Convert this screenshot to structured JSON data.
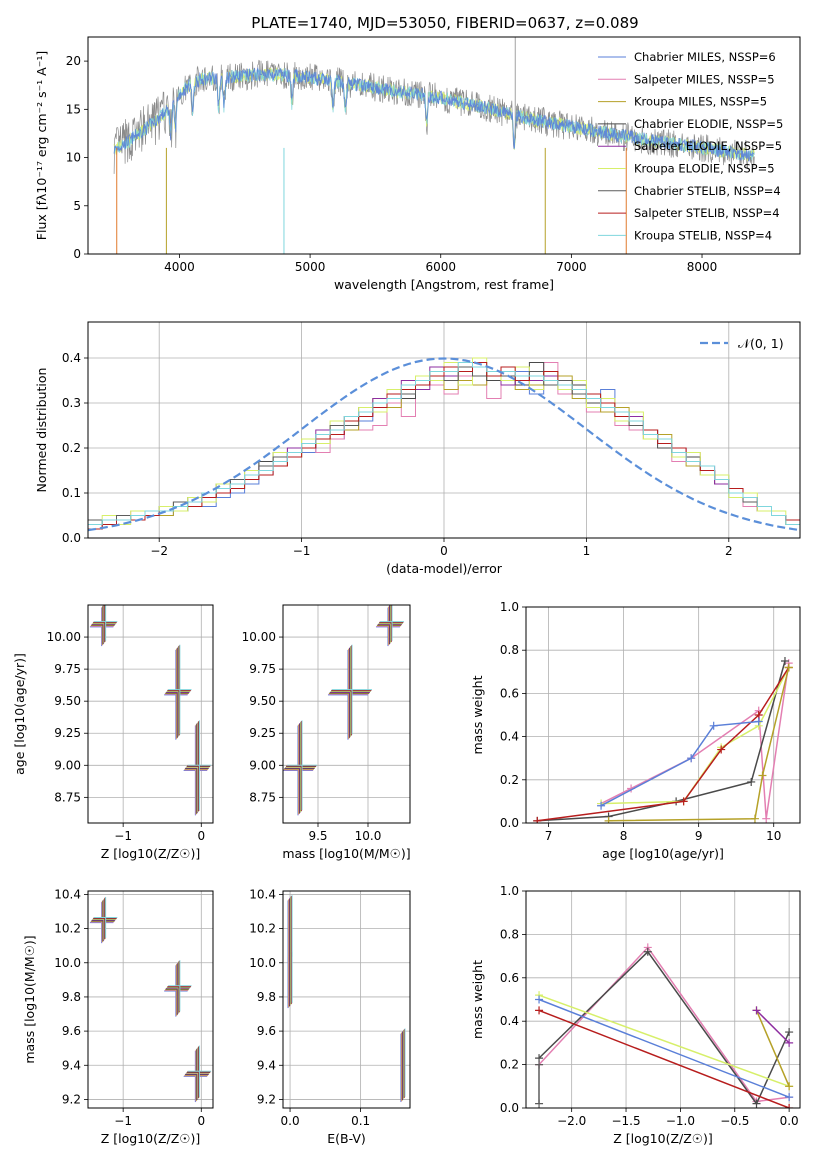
{
  "figure_title": "PLATE=1740, MJD=53050, FIBERID=0637, z=0.089",
  "colors": {
    "Chabrier MILES": "#5a7fd8",
    "Salpeter MILES": "#e37fb2",
    "Kroupa MILES": "#b5a128",
    "Chabrier ELODIE": "#4a4a4a",
    "Salpeter ELODIE": "#8e2ea0",
    "Kroupa ELODIE": "#d7ef6a",
    "Chabrier STELIB": "#5c5c5c",
    "Salpeter STELIB": "#b71d1d",
    "Kroupa STELIB": "#7fd6dd",
    "data_grey": "#8a8a8a",
    "model_orange": "#e07a2c",
    "normal_curve": "#5b8fd9"
  },
  "chart_data": [
    {
      "id": "spectrum",
      "type": "line",
      "title": "PLATE=1740, MJD=53050, FIBERID=0637, z=0.089",
      "xlabel": "wavelength [Angstrom, rest frame]",
      "ylabel": "Flux [fλ10⁻¹⁷ erg cm⁻² s⁻¹ A⁻¹]",
      "xlim": [
        3300,
        8750
      ],
      "ylim": [
        0,
        22.5
      ],
      "xticks": [
        4000,
        5000,
        6000,
        7000,
        8000
      ],
      "yticks": [
        0,
        5,
        10,
        15,
        20
      ],
      "legend_position": "top-right",
      "legend": [
        "Chabrier MILES, NSSP=6",
        "Salpeter MILES, NSSP=5",
        "Kroupa MILES, NSSP=5",
        "Chabrier ELODIE, NSSP=5",
        "Salpeter ELODIE, NSSP=5",
        "Kroupa ELODIE, NSSP=5",
        "Chabrier STELIB, NSSP=4",
        "Salpeter STELIB, NSSP=4",
        "Kroupa STELIB, NSSP=4"
      ],
      "continuum": {
        "x": [
          3500,
          3600,
          3700,
          3800,
          3900,
          4000,
          4100,
          4200,
          4400,
          4600,
          4800,
          5000,
          5200,
          5400,
          5600,
          5800,
          6000,
          6200,
          6400,
          6600,
          6800,
          7000,
          7200,
          7400,
          7600,
          7800,
          8000,
          8200,
          8400
        ],
        "y": [
          10.8,
          11.6,
          12.6,
          13.6,
          14.8,
          16.5,
          17.8,
          18.2,
          18.4,
          18.6,
          18.6,
          18.3,
          17.9,
          17.5,
          17.0,
          16.6,
          16.2,
          15.6,
          15.0,
          14.3,
          13.7,
          13.2,
          12.7,
          12.2,
          11.8,
          11.4,
          11.0,
          10.6,
          10.2
        ]
      }
    },
    {
      "id": "residuals",
      "type": "histogram",
      "xlabel": "(data-model)/error",
      "ylabel": "Normed distribution",
      "xlim": [
        -2.5,
        2.5
      ],
      "ylim": [
        0,
        0.48
      ],
      "xticks": [
        -2,
        -1,
        0,
        1,
        2
      ],
      "yticks": [
        0.0,
        0.1,
        0.2,
        0.3,
        0.4
      ],
      "grid": true,
      "legend_position": "top-right",
      "reference_curve": "𝒩(0, 1)",
      "bins": {
        "start": -2.5,
        "width": 0.1,
        "count": 50
      },
      "series_values": [
        [
          0.03,
          0.03,
          0.04,
          0.04,
          0.05,
          0.05,
          0.06,
          0.07,
          0.07,
          0.09,
          0.1,
          0.12,
          0.14,
          0.16,
          0.18,
          0.19,
          0.21,
          0.22,
          0.24,
          0.26,
          0.28,
          0.3,
          0.32,
          0.34,
          0.36,
          0.37,
          0.38,
          0.39,
          0.36,
          0.34,
          0.37,
          0.32,
          0.35,
          0.35,
          0.32,
          0.3,
          0.33,
          0.28,
          0.27,
          0.23,
          0.22,
          0.19,
          0.17,
          0.14,
          0.14,
          0.09,
          0.08,
          0.07,
          0.05,
          0.04
        ],
        [
          0.04,
          0.03,
          0.05,
          0.06,
          0.05,
          0.06,
          0.07,
          0.08,
          0.09,
          0.1,
          0.13,
          0.14,
          0.15,
          0.18,
          0.2,
          0.21,
          0.19,
          0.22,
          0.26,
          0.24,
          0.25,
          0.3,
          0.27,
          0.35,
          0.34,
          0.32,
          0.36,
          0.38,
          0.31,
          0.34,
          0.36,
          0.33,
          0.39,
          0.32,
          0.33,
          0.28,
          0.31,
          0.25,
          0.24,
          0.22,
          0.21,
          0.17,
          0.19,
          0.14,
          0.12,
          0.1,
          0.07,
          0.06,
          0.05,
          0.03
        ],
        [
          0.03,
          0.04,
          0.05,
          0.04,
          0.06,
          0.05,
          0.08,
          0.07,
          0.1,
          0.11,
          0.12,
          0.15,
          0.17,
          0.16,
          0.19,
          0.22,
          0.21,
          0.25,
          0.24,
          0.28,
          0.31,
          0.29,
          0.33,
          0.34,
          0.37,
          0.33,
          0.35,
          0.34,
          0.36,
          0.35,
          0.33,
          0.34,
          0.37,
          0.36,
          0.31,
          0.32,
          0.28,
          0.29,
          0.25,
          0.22,
          0.23,
          0.19,
          0.16,
          0.15,
          0.13,
          0.1,
          0.09,
          0.06,
          0.05,
          0.04
        ],
        [
          0.02,
          0.04,
          0.04,
          0.05,
          0.06,
          0.07,
          0.06,
          0.09,
          0.09,
          0.12,
          0.13,
          0.13,
          0.17,
          0.19,
          0.18,
          0.21,
          0.23,
          0.24,
          0.27,
          0.29,
          0.3,
          0.33,
          0.31,
          0.36,
          0.35,
          0.37,
          0.34,
          0.38,
          0.35,
          0.36,
          0.34,
          0.39,
          0.35,
          0.33,
          0.34,
          0.3,
          0.29,
          0.27,
          0.26,
          0.24,
          0.2,
          0.18,
          0.18,
          0.15,
          0.12,
          0.11,
          0.08,
          0.07,
          0.05,
          0.03
        ],
        [
          0.03,
          0.03,
          0.04,
          0.05,
          0.05,
          0.06,
          0.07,
          0.08,
          0.1,
          0.1,
          0.12,
          0.14,
          0.16,
          0.17,
          0.2,
          0.2,
          0.24,
          0.23,
          0.26,
          0.27,
          0.31,
          0.31,
          0.35,
          0.33,
          0.38,
          0.36,
          0.37,
          0.38,
          0.37,
          0.34,
          0.36,
          0.35,
          0.36,
          0.34,
          0.33,
          0.31,
          0.3,
          0.27,
          0.27,
          0.23,
          0.21,
          0.2,
          0.17,
          0.16,
          0.12,
          0.11,
          0.09,
          0.06,
          0.05,
          0.04
        ],
        [
          0.03,
          0.05,
          0.03,
          0.06,
          0.05,
          0.07,
          0.06,
          0.09,
          0.08,
          0.12,
          0.11,
          0.15,
          0.15,
          0.19,
          0.18,
          0.22,
          0.21,
          0.26,
          0.25,
          0.29,
          0.28,
          0.33,
          0.32,
          0.36,
          0.35,
          0.39,
          0.34,
          0.4,
          0.36,
          0.35,
          0.38,
          0.33,
          0.37,
          0.33,
          0.35,
          0.29,
          0.31,
          0.26,
          0.28,
          0.22,
          0.22,
          0.18,
          0.19,
          0.14,
          0.14,
          0.09,
          0.1,
          0.06,
          0.06,
          0.03
        ],
        [
          0.04,
          0.03,
          0.05,
          0.05,
          0.06,
          0.06,
          0.08,
          0.08,
          0.09,
          0.11,
          0.13,
          0.13,
          0.16,
          0.18,
          0.19,
          0.2,
          0.22,
          0.25,
          0.25,
          0.28,
          0.3,
          0.32,
          0.32,
          0.35,
          0.37,
          0.35,
          0.38,
          0.36,
          0.37,
          0.36,
          0.35,
          0.37,
          0.34,
          0.35,
          0.32,
          0.31,
          0.29,
          0.28,
          0.25,
          0.24,
          0.21,
          0.19,
          0.17,
          0.15,
          0.13,
          0.11,
          0.08,
          0.07,
          0.05,
          0.04
        ],
        [
          0.02,
          0.03,
          0.04,
          0.04,
          0.05,
          0.06,
          0.07,
          0.07,
          0.09,
          0.1,
          0.11,
          0.13,
          0.14,
          0.16,
          0.18,
          0.2,
          0.22,
          0.23,
          0.26,
          0.27,
          0.29,
          0.32,
          0.33,
          0.34,
          0.36,
          0.38,
          0.37,
          0.39,
          0.36,
          0.38,
          0.35,
          0.36,
          0.37,
          0.34,
          0.33,
          0.32,
          0.3,
          0.27,
          0.26,
          0.24,
          0.21,
          0.2,
          0.17,
          0.15,
          0.13,
          0.11,
          0.09,
          0.07,
          0.05,
          0.04
        ],
        [
          0.03,
          0.04,
          0.04,
          0.05,
          0.06,
          0.06,
          0.07,
          0.08,
          0.1,
          0.11,
          0.12,
          0.14,
          0.15,
          0.17,
          0.19,
          0.21,
          0.23,
          0.24,
          0.27,
          0.28,
          0.3,
          0.31,
          0.34,
          0.35,
          0.37,
          0.37,
          0.39,
          0.38,
          0.37,
          0.37,
          0.36,
          0.36,
          0.35,
          0.34,
          0.33,
          0.31,
          0.29,
          0.28,
          0.26,
          0.23,
          0.22,
          0.19,
          0.17,
          0.16,
          0.13,
          0.1,
          0.09,
          0.07,
          0.05,
          0.03
        ]
      ]
    },
    {
      "id": "age_vs_Z",
      "type": "errorbar",
      "xlabel": "Z [log10(Z/Z☉)]",
      "ylabel": "age  [log10(age/yr)]",
      "xlim": [
        -1.45,
        0.15
      ],
      "ylim": [
        8.55,
        10.25
      ],
      "xticks": [
        -1,
        0
      ],
      "yticks": [
        8.75,
        9.0,
        9.25,
        9.5,
        9.75,
        10.0
      ],
      "grid": true,
      "points": [
        {
          "x": -1.25,
          "y": 10.1,
          "xerr": 0.15,
          "yerr": 0.15
        },
        {
          "x": -0.3,
          "y": 9.57,
          "xerr": 0.15,
          "yerr": 0.35
        },
        {
          "x": -0.05,
          "y": 8.98,
          "xerr": 0.15,
          "yerr": 0.35
        }
      ]
    },
    {
      "id": "age_vs_mass",
      "type": "errorbar",
      "xlabel": "mass [log10(M/M☉)]",
      "ylabel": "",
      "xlim": [
        9.15,
        10.42
      ],
      "ylim": [
        8.55,
        10.25
      ],
      "xticks": [
        9.5,
        10.0
      ],
      "yticks": [
        8.75,
        9.0,
        9.25,
        9.5,
        9.75,
        10.0
      ],
      "grid": true,
      "points": [
        {
          "x": 10.22,
          "y": 10.1,
          "xerr": 0.12,
          "yerr": 0.15
        },
        {
          "x": 9.82,
          "y": 9.57,
          "xerr": 0.2,
          "yerr": 0.35
        },
        {
          "x": 9.32,
          "y": 8.98,
          "xerr": 0.15,
          "yerr": 0.35
        }
      ]
    },
    {
      "id": "weight_vs_age",
      "type": "line",
      "xlabel": "age  [log10(age/yr)]",
      "ylabel": "mass weight",
      "xlim": [
        6.7,
        10.35
      ],
      "ylim": [
        0,
        1.0
      ],
      "xticks": [
        7,
        8,
        9,
        10
      ],
      "yticks": [
        0.0,
        0.2,
        0.4,
        0.6,
        0.8,
        1.0
      ],
      "grid": true,
      "series": [
        {
          "x": [
            7.7,
            8.1,
            8.9,
            9.8,
            9.9,
            10.2
          ],
          "y": [
            0.09,
            0.16,
            0.3,
            0.52,
            0.02,
            0.74
          ]
        },
        {
          "x": [
            6.85,
            7.8,
            8.7,
            9.7,
            10.15
          ],
          "y": [
            0.01,
            0.03,
            0.1,
            0.19,
            0.75
          ]
        },
        {
          "x": [
            7.7,
            8.8,
            9.3,
            9.8,
            10.2
          ],
          "y": [
            0.09,
            0.1,
            0.35,
            0.45,
            0.72
          ]
        },
        {
          "x": [
            6.85,
            8.8,
            9.3,
            9.8,
            10.2
          ],
          "y": [
            0.01,
            0.1,
            0.34,
            0.5,
            0.72
          ]
        },
        {
          "x": [
            7.7,
            8.9,
            9.2,
            9.8
          ],
          "y": [
            0.08,
            0.3,
            0.45,
            0.47
          ]
        },
        {
          "x": [
            7.8,
            9.75,
            9.85,
            10.2
          ],
          "y": [
            0.01,
            0.02,
            0.22,
            0.72
          ]
        }
      ]
    },
    {
      "id": "mass_vs_Z",
      "type": "errorbar",
      "xlabel": "Z [log10(Z/Z☉)]",
      "ylabel": "mass [log10(M/M☉)]",
      "xlim": [
        -1.45,
        0.15
      ],
      "ylim": [
        9.15,
        10.42
      ],
      "xticks": [
        -1,
        0
      ],
      "yticks": [
        9.2,
        9.4,
        9.6,
        9.8,
        10.0,
        10.2,
        10.4
      ],
      "grid": true,
      "points": [
        {
          "x": -1.25,
          "y": 10.25,
          "xerr": 0.15,
          "yerr": 0.12
        },
        {
          "x": -0.3,
          "y": 9.85,
          "xerr": 0.15,
          "yerr": 0.15
        },
        {
          "x": -0.05,
          "y": 9.35,
          "xerr": 0.15,
          "yerr": 0.15
        }
      ]
    },
    {
      "id": "mass_vs_EBV",
      "type": "errorbar",
      "xlabel": "E(B-V)",
      "ylabel": "",
      "xlim": [
        -0.01,
        0.17
      ],
      "ylim": [
        9.15,
        10.42
      ],
      "xticks": [
        0.0,
        0.1
      ],
      "yticks": [
        9.2,
        9.4,
        9.6,
        9.8,
        10.0,
        10.2,
        10.4
      ],
      "grid": true,
      "points": [
        {
          "x": 0.0,
          "y": 10.2,
          "xerr": 0.0,
          "yerr": 0.18
        },
        {
          "x": 0.0,
          "y": 9.9,
          "xerr": 0.0,
          "yerr": 0.15
        },
        {
          "x": 0.16,
          "y": 9.4,
          "xerr": 0.0,
          "yerr": 0.2
        }
      ]
    },
    {
      "id": "weight_vs_Z",
      "type": "line",
      "xlabel": "Z [log10(Z/Z☉)]",
      "ylabel": "mass weight",
      "xlim": [
        -2.42,
        0.1
      ],
      "ylim": [
        0,
        1.0
      ],
      "xticks": [
        -2.0,
        -1.5,
        -1.0,
        -0.5,
        0.0
      ],
      "yticks": [
        0.0,
        0.2,
        0.4,
        0.6,
        0.8,
        1.0
      ],
      "grid": true,
      "series": [
        {
          "x": [
            -2.3,
            -1.3,
            -0.3,
            0.0
          ],
          "y": [
            0.2,
            0.74,
            0.03,
            0.05
          ]
        },
        {
          "x": [
            -2.3,
            -1.3,
            -0.3,
            0.0
          ],
          "y": [
            0.23,
            0.72,
            0.02,
            0.35
          ]
        },
        {
          "x": [
            -2.3,
            0.0
          ],
          "y": [
            0.52,
            0.1
          ]
        },
        {
          "x": [
            -2.3,
            0.0
          ],
          "y": [
            0.45,
            0.0
          ]
        },
        {
          "x": [
            -2.3,
            0.0
          ],
          "y": [
            0.5,
            0.05
          ]
        },
        {
          "x": [
            -0.3,
            0.0
          ],
          "y": [
            0.45,
            0.1
          ]
        },
        {
          "x": [
            -0.3,
            0.0
          ],
          "y": [
            0.45,
            0.3
          ]
        },
        {
          "x": [
            -2.3,
            -2.3
          ],
          "y": [
            0.02,
            0.2
          ]
        }
      ]
    }
  ]
}
